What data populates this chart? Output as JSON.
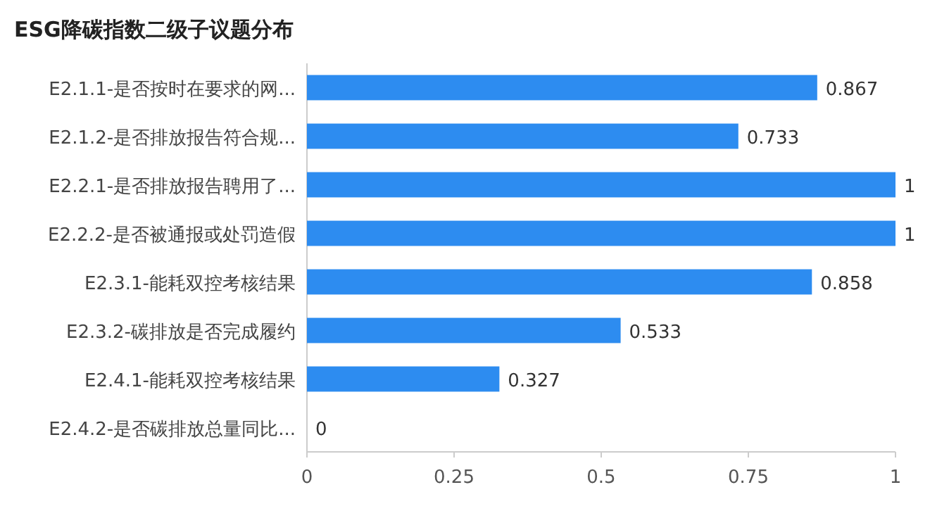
{
  "chart_data": {
    "type": "bar",
    "title": "ESG降碳指数二级子议题分布",
    "orientation": "horizontal",
    "categories": [
      "E2.1.1-是否按时在要求的网...",
      "E2.1.2-是否排放报告符合规...",
      "E2.2.1-是否排放报告聘用了...",
      "E2.2.2-是否被通报或处罚造假",
      "E2.3.1-能耗双控考核结果",
      "E2.3.2-碳排放是否完成履约",
      "E2.4.1-能耗双控考核结果",
      "E2.4.2-是否碳排放总量同比..."
    ],
    "values": [
      0.867,
      0.733,
      1,
      1,
      0.858,
      0.533,
      0.327,
      0
    ],
    "color": "#2d8cf0",
    "xlim": [
      0,
      1
    ],
    "xticks": [
      0,
      0.25,
      0.5,
      0.75,
      1
    ],
    "data_labels": true
  }
}
